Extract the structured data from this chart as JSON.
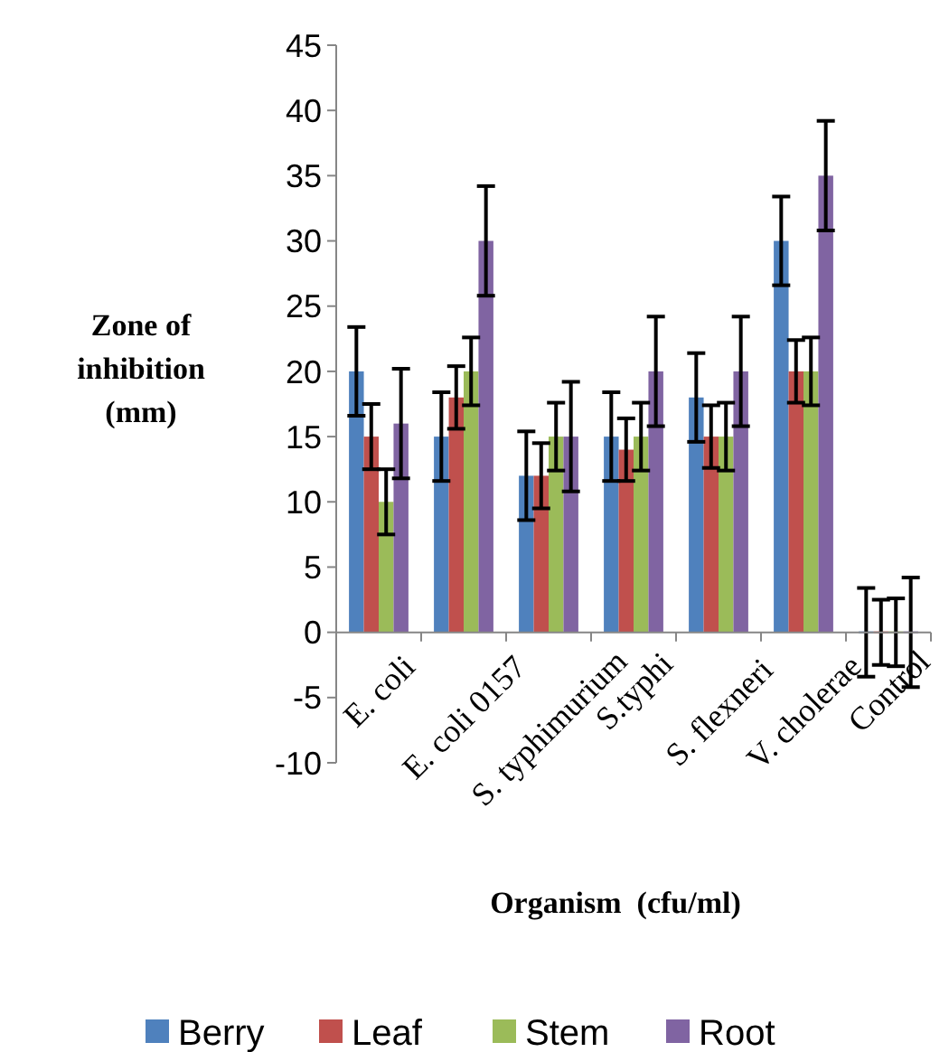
{
  "chart_data": {
    "type": "bar",
    "xlabel": "Organism  (cfu/ml)",
    "ylabel": "Zone of inhibition (mm)",
    "categories": [
      "E. coli",
      "E. coli 0157",
      "S. typhimurium",
      "S.typhi",
      "S. flexneri",
      "V. cholerae",
      "Control"
    ],
    "series": [
      {
        "name": "Berry",
        "color": "#4f81bd",
        "values": [
          20,
          15,
          12,
          15,
          18,
          30,
          0
        ],
        "errors": [
          3.4,
          3.4,
          3.4,
          3.4,
          3.4,
          3.4,
          3.4
        ]
      },
      {
        "name": "Leaf",
        "color": "#c0504d",
        "values": [
          15,
          18,
          12,
          14,
          15,
          20,
          0
        ],
        "errors": [
          2.5,
          2.4,
          2.5,
          2.4,
          2.4,
          2.4,
          2.5
        ]
      },
      {
        "name": "Stem",
        "color": "#9bbb59",
        "values": [
          10,
          20,
          15,
          15,
          15,
          20,
          0
        ],
        "errors": [
          2.5,
          2.6,
          2.6,
          2.6,
          2.6,
          2.6,
          2.6
        ]
      },
      {
        "name": "Root",
        "color": "#8064a2",
        "values": [
          16,
          30,
          15,
          20,
          20,
          35,
          0
        ],
        "errors": [
          4.2,
          4.2,
          4.2,
          4.2,
          4.2,
          4.2,
          4.2
        ]
      }
    ],
    "ylim": [
      -10,
      45
    ],
    "yticks": [
      -10,
      -5,
      0,
      5,
      10,
      15,
      20,
      25,
      30,
      35,
      40,
      45
    ],
    "grid": false,
    "legend": "bottom"
  }
}
